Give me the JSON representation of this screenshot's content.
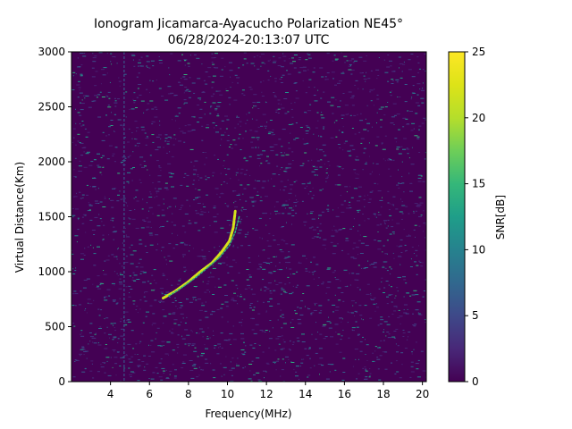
{
  "chart_data": {
    "type": "heatmap",
    "title_line1": "Ionogram Jicamarca-Ayacucho Polarization NE45°",
    "title_line2": "06/28/2024-20:13:07 UTC",
    "xlabel": "Frequency(MHz)",
    "ylabel": "Virtual Distance(Km)",
    "xlim": [
      2.0,
      20.2
    ],
    "ylim": [
      0,
      3000
    ],
    "x_ticks": [
      4,
      6,
      8,
      10,
      12,
      14,
      16,
      18,
      20
    ],
    "y_ticks": [
      0,
      500,
      1000,
      1500,
      2000,
      2500,
      3000
    ],
    "colorbar": {
      "label": "SNR[dB]",
      "colormap": "viridis",
      "range": [
        0,
        25
      ],
      "ticks": [
        0,
        5,
        10,
        15,
        20,
        25
      ]
    },
    "background_snr_db": 1,
    "noise_snr_db_range": [
      2,
      15
    ],
    "interference_lines_mhz": [
      4.7
    ],
    "traces": [
      {
        "name": "",
        "snr_db": 22,
        "points": [
          {
            "x": 6.7,
            "y": 760
          },
          {
            "x": 7.3,
            "y": 820
          },
          {
            "x": 8.0,
            "y": 910
          },
          {
            "x": 8.6,
            "y": 1000
          },
          {
            "x": 9.2,
            "y": 1080
          },
          {
            "x": 9.7,
            "y": 1180
          },
          {
            "x": 10.1,
            "y": 1280
          },
          {
            "x": 10.3,
            "y": 1400
          },
          {
            "x": 10.4,
            "y": 1550
          }
        ]
      },
      {
        "name": "",
        "snr_db": 14,
        "points": [
          {
            "x": 7.0,
            "y": 780
          },
          {
            "x": 7.7,
            "y": 860
          },
          {
            "x": 8.4,
            "y": 950
          },
          {
            "x": 9.0,
            "y": 1040
          },
          {
            "x": 9.6,
            "y": 1130
          },
          {
            "x": 10.1,
            "y": 1240
          },
          {
            "x": 10.4,
            "y": 1360
          },
          {
            "x": 10.6,
            "y": 1500
          }
        ]
      }
    ],
    "grid": false
  }
}
